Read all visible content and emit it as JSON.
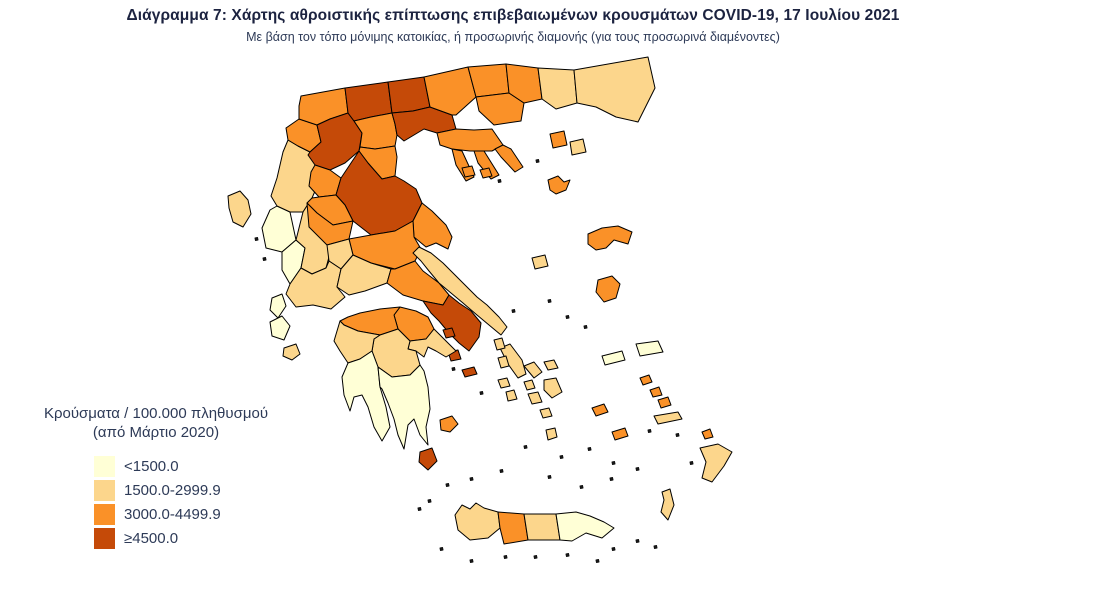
{
  "title": "Διάγραμμα 7: Χάρτης αθροιστικής επίπτωσης επιβεβαιωμένων κρουσμάτων COVID-19, 17 Ιουλίου 2021",
  "subtitle": "Με βάση τον τόπο μόνιμης κατοικίας, ή προσωρινής διαμονής (για τους προσωρινά διαμένοντες)",
  "legend": {
    "title_line1": "Κρούσματα / 100.000 πληθυσμού",
    "title_line2": "(από Μάρτιο 2020)",
    "items": [
      {
        "label": "<1500.0",
        "color": "#FFFFD6"
      },
      {
        "label": "1500.0-2999.9",
        "color": "#FCD68C"
      },
      {
        "label": "3000.0-4499.9",
        "color": "#FA9128"
      },
      {
        "label": "≥4500.0",
        "color": "#C54A08"
      }
    ]
  },
  "colors": {
    "title_text": "#1c2340",
    "body_text": "#2d3a57",
    "region_border": "#000000",
    "background": "#ffffff"
  },
  "map": {
    "regions": [
      {
        "id": "corfu",
        "category": 2
      },
      {
        "id": "thesprotia",
        "category": 1
      },
      {
        "id": "ioannina",
        "category": 2
      },
      {
        "id": "preveza",
        "category": 1
      },
      {
        "id": "arta",
        "category": 2
      },
      {
        "id": "kastoria",
        "category": 3
      },
      {
        "id": "florina",
        "category": 3
      },
      {
        "id": "kozani",
        "category": 4
      },
      {
        "id": "grevena",
        "category": 3
      },
      {
        "id": "pella",
        "category": 4
      },
      {
        "id": "kilkis",
        "category": 4
      },
      {
        "id": "imathia",
        "category": 3
      },
      {
        "id": "thessaloniki",
        "category": 4
      },
      {
        "id": "pieria",
        "category": 3
      },
      {
        "id": "serres",
        "category": 3
      },
      {
        "id": "drama",
        "category": 3
      },
      {
        "id": "kavala",
        "category": 3
      },
      {
        "id": "xanthi",
        "category": 3
      },
      {
        "id": "rhodopi",
        "category": 2
      },
      {
        "id": "evros",
        "category": 2
      },
      {
        "id": "thasos",
        "category": 3
      },
      {
        "id": "samothraki",
        "category": 2
      },
      {
        "id": "chalkidiki",
        "category": 3
      },
      {
        "id": "larissa",
        "category": 4
      },
      {
        "id": "trikala",
        "category": 3
      },
      {
        "id": "karditsa",
        "category": 3
      },
      {
        "id": "magnesia",
        "category": 3
      },
      {
        "id": "sporades",
        "category": 3
      },
      {
        "id": "phthiotis",
        "category": 3
      },
      {
        "id": "evrytania",
        "category": 2
      },
      {
        "id": "aetolia-acarnania",
        "category": 2
      },
      {
        "id": "phocis",
        "category": 2
      },
      {
        "id": "boeotia",
        "category": 3
      },
      {
        "id": "euboea",
        "category": 2
      },
      {
        "id": "skyros",
        "category": 2
      },
      {
        "id": "attica",
        "category": 4
      },
      {
        "id": "attica-islands",
        "category": 4
      },
      {
        "id": "kythira",
        "category": 4
      },
      {
        "id": "corinthia",
        "category": 3
      },
      {
        "id": "achaia",
        "category": 3
      },
      {
        "id": "argolis",
        "category": 2
      },
      {
        "id": "arcadia",
        "category": 2
      },
      {
        "id": "elis",
        "category": 2
      },
      {
        "id": "messenia",
        "category": 1
      },
      {
        "id": "laconia",
        "category": 1
      },
      {
        "id": "lefkada",
        "category": 1
      },
      {
        "id": "kefalonia",
        "category": 1
      },
      {
        "id": "zakynthos",
        "category": 2
      },
      {
        "id": "lemnos",
        "category": 3
      },
      {
        "id": "lesbos",
        "category": 3
      },
      {
        "id": "chios",
        "category": 3
      },
      {
        "id": "samos",
        "category": 1
      },
      {
        "id": "ikaria",
        "category": 1
      },
      {
        "id": "andros",
        "category": 2
      },
      {
        "id": "tinos",
        "category": 2
      },
      {
        "id": "mykonos",
        "category": 2
      },
      {
        "id": "syros",
        "category": 2
      },
      {
        "id": "kea",
        "category": 2
      },
      {
        "id": "kythnos",
        "category": 2
      },
      {
        "id": "serifos",
        "category": 2
      },
      {
        "id": "sifnos",
        "category": 2
      },
      {
        "id": "paros",
        "category": 2
      },
      {
        "id": "naxos",
        "category": 2
      },
      {
        "id": "ios",
        "category": 2
      },
      {
        "id": "santorini",
        "category": 2
      },
      {
        "id": "milos",
        "category": 3
      },
      {
        "id": "amorgos",
        "category": 3
      },
      {
        "id": "patmos",
        "category": 3
      },
      {
        "id": "leros",
        "category": 3
      },
      {
        "id": "kalymnos",
        "category": 3
      },
      {
        "id": "kos",
        "category": 2
      },
      {
        "id": "astypalaia",
        "category": 3
      },
      {
        "id": "symi",
        "category": 3
      },
      {
        "id": "rhodes",
        "category": 2
      },
      {
        "id": "karpathos",
        "category": 2
      },
      {
        "id": "chania",
        "category": 2
      },
      {
        "id": "rethymno",
        "category": 3
      },
      {
        "id": "heraklion",
        "category": 2
      },
      {
        "id": "lasithi",
        "category": 1
      }
    ]
  }
}
